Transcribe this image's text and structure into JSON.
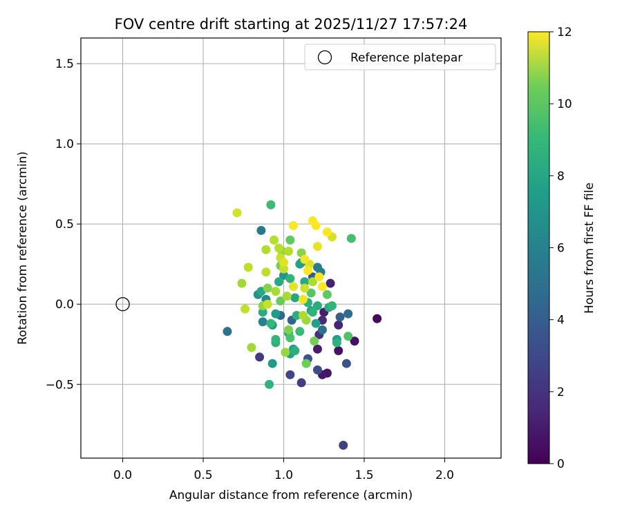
{
  "chart_data": {
    "type": "scatter",
    "title": "FOV centre drift starting at 2025/11/27 17:57:24",
    "xlabel": "Angular distance from reference (arcmin)",
    "ylabel": "Rotation from reference (arcmin)",
    "xlim": [
      -0.26,
      2.35
    ],
    "ylim": [
      -0.96,
      1.66
    ],
    "xticks": [
      0.0,
      0.5,
      1.0,
      1.5,
      2.0
    ],
    "xtick_labels": [
      "0.0",
      "0.5",
      "1.0",
      "1.5",
      "2.0"
    ],
    "yticks": [
      -0.5,
      0.0,
      0.5,
      1.0,
      1.5
    ],
    "ytick_labels": [
      "−0.5",
      "0.0",
      "0.5",
      "1.0",
      "1.5"
    ],
    "grid": true,
    "legend": {
      "position": "top-right",
      "entries": [
        "Reference platepar"
      ]
    },
    "reference_point": {
      "x": 0.0,
      "y": 0.0,
      "label": "Reference platepar"
    },
    "colorbar": {
      "label": "Hours from first FF file",
      "range": [
        0,
        12
      ],
      "ticks": [
        0,
        2,
        4,
        6,
        8,
        10,
        12
      ],
      "tick_labels": [
        "0",
        "2",
        "4",
        "6",
        "8",
        "10",
        "12"
      ],
      "colormap": "viridis"
    },
    "points": [
      {
        "x": 1.58,
        "y": -0.09,
        "h": 0.3
      },
      {
        "x": 1.44,
        "y": -0.23,
        "h": 0.5
      },
      {
        "x": 1.34,
        "y": -0.29,
        "h": 0.6
      },
      {
        "x": 1.27,
        "y": -0.43,
        "h": 0.7
      },
      {
        "x": 1.24,
        "y": -0.44,
        "h": 0.8
      },
      {
        "x": 1.21,
        "y": -0.28,
        "h": 0.9
      },
      {
        "x": 1.25,
        "y": -0.05,
        "h": 1.0
      },
      {
        "x": 1.29,
        "y": 0.13,
        "h": 1.1
      },
      {
        "x": 1.34,
        "y": -0.13,
        "h": 1.2
      },
      {
        "x": 1.24,
        "y": -0.1,
        "h": 1.4
      },
      {
        "x": 1.22,
        "y": -0.19,
        "h": 1.6
      },
      {
        "x": 0.85,
        "y": -0.33,
        "h": 2.0
      },
      {
        "x": 1.11,
        "y": -0.49,
        "h": 2.2
      },
      {
        "x": 1.37,
        "y": -0.88,
        "h": 2.4
      },
      {
        "x": 1.04,
        "y": -0.44,
        "h": 2.6
      },
      {
        "x": 1.21,
        "y": -0.41,
        "h": 2.8
      },
      {
        "x": 1.39,
        "y": -0.37,
        "h": 3.0
      },
      {
        "x": 1.15,
        "y": -0.34,
        "h": 3.2
      },
      {
        "x": 1.18,
        "y": 0.17,
        "h": 3.4
      },
      {
        "x": 1.35,
        "y": -0.08,
        "h": 3.6
      },
      {
        "x": 1.05,
        "y": -0.1,
        "h": 3.8
      },
      {
        "x": 0.98,
        "y": -0.07,
        "h": 4.0
      },
      {
        "x": 1.4,
        "y": -0.06,
        "h": 4.2
      },
      {
        "x": 1.24,
        "y": -0.16,
        "h": 4.4
      },
      {
        "x": 0.65,
        "y": -0.17,
        "h": 4.6
      },
      {
        "x": 0.86,
        "y": 0.46,
        "h": 4.8
      },
      {
        "x": 1.21,
        "y": 0.23,
        "h": 5.0
      },
      {
        "x": 1.23,
        "y": 0.2,
        "h": 5.2
      },
      {
        "x": 0.87,
        "y": -0.11,
        "h": 5.4
      },
      {
        "x": 0.89,
        "y": 0.03,
        "h": 5.6
      },
      {
        "x": 1.11,
        "y": 0.26,
        "h": 5.8
      },
      {
        "x": 0.84,
        "y": 0.06,
        "h": 6.0
      },
      {
        "x": 1.0,
        "y": 0.18,
        "h": 6.2
      },
      {
        "x": 0.93,
        "y": -0.13,
        "h": 6.3
      },
      {
        "x": 1.06,
        "y": -0.28,
        "h": 6.4
      },
      {
        "x": 0.93,
        "y": -0.37,
        "h": 6.5
      },
      {
        "x": 0.95,
        "y": -0.06,
        "h": 6.6
      },
      {
        "x": 1.33,
        "y": -0.22,
        "h": 6.7
      },
      {
        "x": 1.2,
        "y": -0.12,
        "h": 6.8
      },
      {
        "x": 1.1,
        "y": 0.25,
        "h": 6.9
      },
      {
        "x": 1.04,
        "y": -0.31,
        "h": 7.0
      },
      {
        "x": 1.17,
        "y": -0.04,
        "h": 7.0
      },
      {
        "x": 0.86,
        "y": 0.08,
        "h": 7.1
      },
      {
        "x": 1.07,
        "y": 0.04,
        "h": 7.1
      },
      {
        "x": 0.97,
        "y": 0.14,
        "h": 7.2
      },
      {
        "x": 1.13,
        "y": 0.14,
        "h": 7.2
      },
      {
        "x": 1.03,
        "y": -0.18,
        "h": 7.3
      },
      {
        "x": 1.28,
        "y": -0.02,
        "h": 7.3
      },
      {
        "x": 1.21,
        "y": -0.01,
        "h": 7.4
      },
      {
        "x": 0.87,
        "y": -0.05,
        "h": 7.4
      },
      {
        "x": 1.08,
        "y": -0.07,
        "h": 7.5
      },
      {
        "x": 1.15,
        "y": 0.01,
        "h": 7.5
      },
      {
        "x": 0.95,
        "y": -0.24,
        "h": 7.6
      },
      {
        "x": 1.07,
        "y": -0.29,
        "h": 7.6
      },
      {
        "x": 0.91,
        "y": -0.5,
        "h": 7.7
      },
      {
        "x": 1.33,
        "y": -0.24,
        "h": 7.7
      },
      {
        "x": 1.04,
        "y": 0.16,
        "h": 7.8
      },
      {
        "x": 1.18,
        "y": -0.05,
        "h": 7.8
      },
      {
        "x": 1.3,
        "y": -0.01,
        "h": 7.9
      },
      {
        "x": 0.95,
        "y": -0.22,
        "h": 7.9
      },
      {
        "x": 0.92,
        "y": -0.12,
        "h": 8.0
      },
      {
        "x": 1.1,
        "y": -0.17,
        "h": 8.1
      },
      {
        "x": 0.92,
        "y": 0.62,
        "h": 8.2
      },
      {
        "x": 1.42,
        "y": 0.41,
        "h": 8.4
      },
      {
        "x": 1.04,
        "y": -0.21,
        "h": 8.5
      },
      {
        "x": 1.4,
        "y": -0.2,
        "h": 8.6
      },
      {
        "x": 1.17,
        "y": 0.07,
        "h": 8.8
      },
      {
        "x": 1.04,
        "y": 0.4,
        "h": 9.0
      },
      {
        "x": 1.27,
        "y": 0.06,
        "h": 9.0
      },
      {
        "x": 0.98,
        "y": 0.02,
        "h": 9.2
      },
      {
        "x": 1.14,
        "y": -0.37,
        "h": 9.3
      },
      {
        "x": 1.19,
        "y": -0.23,
        "h": 9.4
      },
      {
        "x": 0.98,
        "y": 0.24,
        "h": 9.5
      },
      {
        "x": 1.03,
        "y": -0.16,
        "h": 9.6
      },
      {
        "x": 0.9,
        "y": 0.1,
        "h": 9.7
      },
      {
        "x": 1.11,
        "y": 0.32,
        "h": 9.8
      },
      {
        "x": 0.99,
        "y": 0.33,
        "h": 9.9
      },
      {
        "x": 0.87,
        "y": -0.01,
        "h": 10.0
      },
      {
        "x": 1.01,
        "y": -0.3,
        "h": 10.1
      },
      {
        "x": 1.14,
        "y": -0.1,
        "h": 10.2
      },
      {
        "x": 0.8,
        "y": -0.27,
        "h": 10.3
      },
      {
        "x": 0.74,
        "y": 0.13,
        "h": 10.3
      },
      {
        "x": 0.95,
        "y": 0.08,
        "h": 10.4
      },
      {
        "x": 1.02,
        "y": 0.05,
        "h": 10.4
      },
      {
        "x": 1.18,
        "y": 0.14,
        "h": 10.5
      },
      {
        "x": 1.12,
        "y": -0.07,
        "h": 10.5
      },
      {
        "x": 0.89,
        "y": 0.34,
        "h": 10.6
      },
      {
        "x": 1.03,
        "y": 0.33,
        "h": 10.6
      },
      {
        "x": 0.94,
        "y": 0.4,
        "h": 10.7
      },
      {
        "x": 0.97,
        "y": 0.35,
        "h": 10.7
      },
      {
        "x": 0.78,
        "y": 0.23,
        "h": 10.8
      },
      {
        "x": 0.89,
        "y": 0.2,
        "h": 10.8
      },
      {
        "x": 1.0,
        "y": 0.22,
        "h": 10.9
      },
      {
        "x": 0.76,
        "y": -0.03,
        "h": 10.9
      },
      {
        "x": 0.9,
        "y": 0.0,
        "h": 11.0
      },
      {
        "x": 0.98,
        "y": 0.29,
        "h": 11.0
      },
      {
        "x": 1.13,
        "y": 0.1,
        "h": 11.1
      },
      {
        "x": 0.71,
        "y": 0.57,
        "h": 11.2
      },
      {
        "x": 1.3,
        "y": 0.42,
        "h": 11.2
      },
      {
        "x": 1.16,
        "y": 0.25,
        "h": 11.3
      },
      {
        "x": 1.0,
        "y": 0.26,
        "h": 11.4
      },
      {
        "x": 1.06,
        "y": 0.11,
        "h": 11.5
      },
      {
        "x": 1.21,
        "y": 0.36,
        "h": 11.6
      },
      {
        "x": 1.12,
        "y": 0.03,
        "h": 11.7
      },
      {
        "x": 1.13,
        "y": 0.28,
        "h": 11.8
      },
      {
        "x": 1.22,
        "y": 0.17,
        "h": 11.9
      },
      {
        "x": 1.06,
        "y": 0.49,
        "h": 12.0
      },
      {
        "x": 1.18,
        "y": 0.52,
        "h": 12.0
      },
      {
        "x": 1.2,
        "y": 0.49,
        "h": 12.0
      },
      {
        "x": 1.27,
        "y": 0.45,
        "h": 12.0
      },
      {
        "x": 1.24,
        "y": 0.11,
        "h": 12.0
      },
      {
        "x": 1.15,
        "y": 0.21,
        "h": 12.0
      }
    ]
  }
}
